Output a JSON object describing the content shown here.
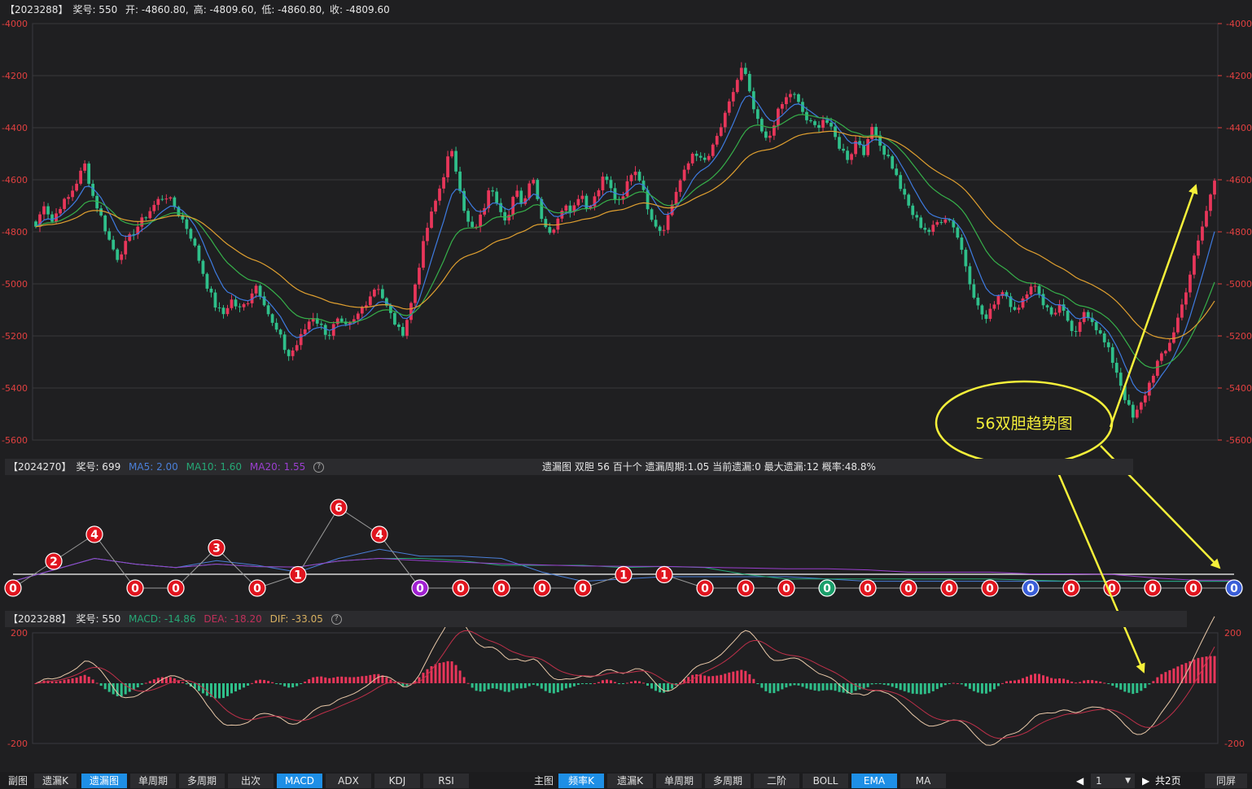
{
  "top_info": {
    "code": "【2023288】",
    "prize": "奖号: 550",
    "open": "开: -4860.80,",
    "high": "高: -4809.60,",
    "low": "低: -4860.80,",
    "close": "收: -4809.60"
  },
  "mid_info": {
    "code": "【2024270】",
    "prize": "奖号: 699",
    "ma5": "MA5: 2.00",
    "ma10": "MA10: 1.60",
    "ma20": "MA20: 1.55",
    "ma5_color": "#4a7fd8",
    "ma10_color": "#26a876",
    "ma20_color": "#9b3fd0",
    "center": "遗漏图   双胆   56   百十个   遗漏周期:1.05   当前遗漏:0   最大遗漏:12   概率:48.8%"
  },
  "bot_info": {
    "code": "【2023288】",
    "prize": "奖号: 550",
    "macd": "MACD: -14.86",
    "dea": "DEA: -18.20",
    "dif": "DIF: -33.05",
    "macd_color": "#26a876",
    "dea_color": "#c0305a",
    "dif_color": "#d8b060"
  },
  "annotation": {
    "text": "56双胆趋势图",
    "color": "#f5f03a"
  },
  "chart_data": [
    {
      "type": "candlestick",
      "name": "main",
      "y_ticks": [
        "-4000",
        "-4200",
        "-4400",
        "-4600",
        "-4800",
        "-5000",
        "-5200",
        "-5400",
        "-5600"
      ],
      "ylim": [
        -5600,
        -4000
      ],
      "close_path": [
        -4780,
        -4690,
        -4760,
        -4700,
        -4670,
        -4610,
        -4540,
        -4660,
        -4740,
        -4830,
        -4900,
        -4850,
        -4800,
        -4760,
        -4720,
        -4680,
        -4660,
        -4700,
        -4750,
        -4810,
        -4900,
        -5000,
        -5080,
        -5120,
        -5060,
        -5100,
        -5070,
        -5000,
        -5060,
        -5150,
        -5200,
        -5280,
        -5240,
        -5180,
        -5120,
        -5160,
        -5200,
        -5140,
        -5170,
        -5150,
        -5100,
        -5050,
        -5000,
        -5080,
        -5140,
        -5200,
        -5100,
        -4950,
        -4800,
        -4700,
        -4600,
        -4480,
        -4600,
        -4760,
        -4800,
        -4720,
        -4620,
        -4700,
        -4760,
        -4640,
        -4700,
        -4560,
        -4720,
        -4800,
        -4780,
        -4680,
        -4720,
        -4640,
        -4720,
        -4640,
        -4580,
        -4660,
        -4700,
        -4580,
        -4560,
        -4680,
        -4760,
        -4800,
        -4720,
        -4620,
        -4560,
        -4480,
        -4540,
        -4500,
        -4420,
        -4340,
        -4240,
        -4160,
        -4300,
        -4400,
        -4460,
        -4360,
        -4300,
        -4260,
        -4320,
        -4380,
        -4400,
        -4360,
        -4420,
        -4480,
        -4520,
        -4440,
        -4500,
        -4380,
        -4480,
        -4520,
        -4600,
        -4680,
        -4740,
        -4780,
        -4800,
        -4760,
        -4740,
        -4780,
        -4880,
        -5000,
        -5100,
        -5140,
        -5060,
        -5020,
        -5080,
        -5100,
        -5020,
        -5000,
        -5080,
        -5120,
        -5080,
        -5160,
        -5200,
        -5100,
        -5140,
        -5200,
        -5260,
        -5340,
        -5440,
        -5520,
        -5460,
        -5380,
        -5300,
        -5260,
        -5180,
        -5080,
        -4960,
        -4840,
        -4720,
        -4600
      ],
      "series": [
        {
          "name": "EMA-short",
          "color": "#3e7be0"
        },
        {
          "name": "EMA-mid",
          "color": "#36b04a"
        },
        {
          "name": "EMA-long",
          "color": "#e0a030"
        }
      ]
    },
    {
      "type": "scatter",
      "name": "omission",
      "values": [
        0,
        2,
        4,
        0,
        0,
        3,
        0,
        1,
        6,
        4,
        0,
        0,
        0,
        0,
        0,
        1,
        1,
        0,
        0,
        0,
        0,
        0,
        0,
        0,
        0,
        0,
        0,
        0,
        0,
        0,
        0
      ],
      "colors": [
        "red",
        "red",
        "red",
        "red",
        "red",
        "red",
        "red",
        "red",
        "red",
        "red",
        "purple",
        "red",
        "red",
        "red",
        "red",
        "red",
        "red",
        "red",
        "red",
        "red",
        "green",
        "red",
        "red",
        "red",
        "red",
        "blue",
        "red",
        "red",
        "red",
        "red",
        "blue"
      ],
      "color_map": {
        "red": "#e0141e",
        "purple": "#a020d0",
        "green": "#1a9e6a",
        "blue": "#3a5ed8"
      }
    },
    {
      "type": "bar",
      "name": "macd",
      "y_ticks": [
        "200",
        "-200"
      ],
      "ylim": [
        -200,
        200
      ]
    }
  ],
  "toolbar": {
    "left": [
      {
        "label": "副图",
        "type": "label"
      },
      {
        "label": "遗漏K",
        "active": false
      },
      {
        "label": "遗漏图",
        "active": true
      },
      {
        "label": "单周期",
        "active": false
      },
      {
        "label": "多周期",
        "active": false
      },
      {
        "label": "出次",
        "active": false
      },
      {
        "label": "MACD",
        "active": true
      },
      {
        "label": "ADX",
        "active": false
      },
      {
        "label": "KDJ",
        "active": false
      },
      {
        "label": "RSI",
        "active": false
      }
    ],
    "right": [
      {
        "label": "主图",
        "type": "label"
      },
      {
        "label": "频率K",
        "active": true
      },
      {
        "label": "遗漏K",
        "active": false
      },
      {
        "label": "单周期",
        "active": false
      },
      {
        "label": "多周期",
        "active": false
      },
      {
        "label": "二阶",
        "active": false
      },
      {
        "label": "BOLL",
        "active": false
      },
      {
        "label": "EMA",
        "active": true
      },
      {
        "label": "MA",
        "active": false
      }
    ],
    "page": "1",
    "total": "共2页",
    "sync": "同屏"
  }
}
